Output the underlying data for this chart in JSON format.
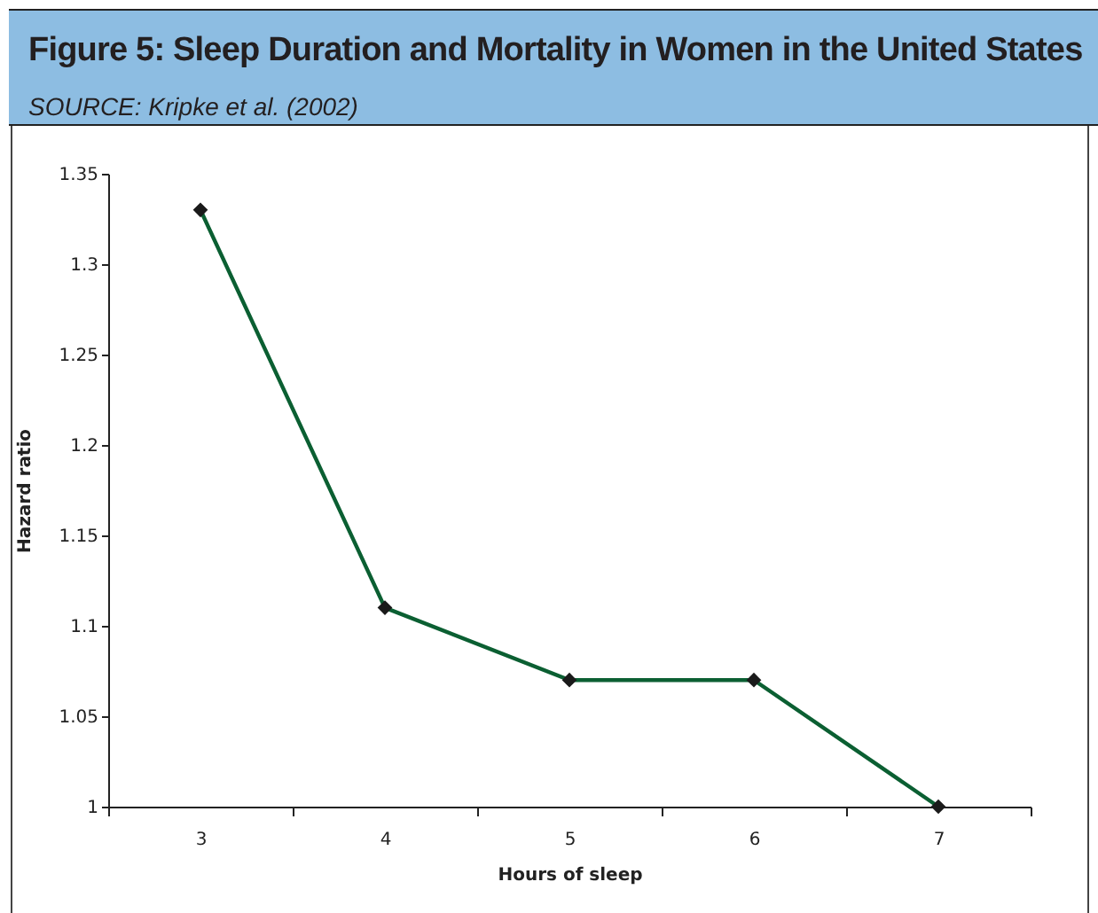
{
  "chart_data": {
    "type": "line",
    "title": "Figure 5: Sleep Duration and Mortality in Women in the United States",
    "subtitle": "SOURCE: Kripke et al. (2002)",
    "xlabel": "Hours of sleep",
    "ylabel": "Hazard ratio",
    "categories": [
      "3",
      "4",
      "5",
      "6",
      "7"
    ],
    "series": [
      {
        "color": "#0b5f32",
        "values": [
          1.33,
          1.11,
          1.07,
          1.07,
          1.0
        ]
      }
    ],
    "ylim": [
      1,
      1.35
    ],
    "yticks": [
      1,
      {
        "value": 1.05,
        "label": "1.05"
      },
      {
        "value": 1.1,
        "label": "1.1"
      },
      {
        "value": 1.15,
        "label": "1.15"
      },
      {
        "value": 1.2,
        "label": "1.2"
      },
      {
        "value": 1.25,
        "label": "1.25"
      },
      {
        "value": 1.3,
        "label": "1.3"
      },
      {
        "value": 1.35,
        "label": "1.35"
      }
    ],
    "marker": "diamond",
    "grid": false,
    "legend": false
  }
}
